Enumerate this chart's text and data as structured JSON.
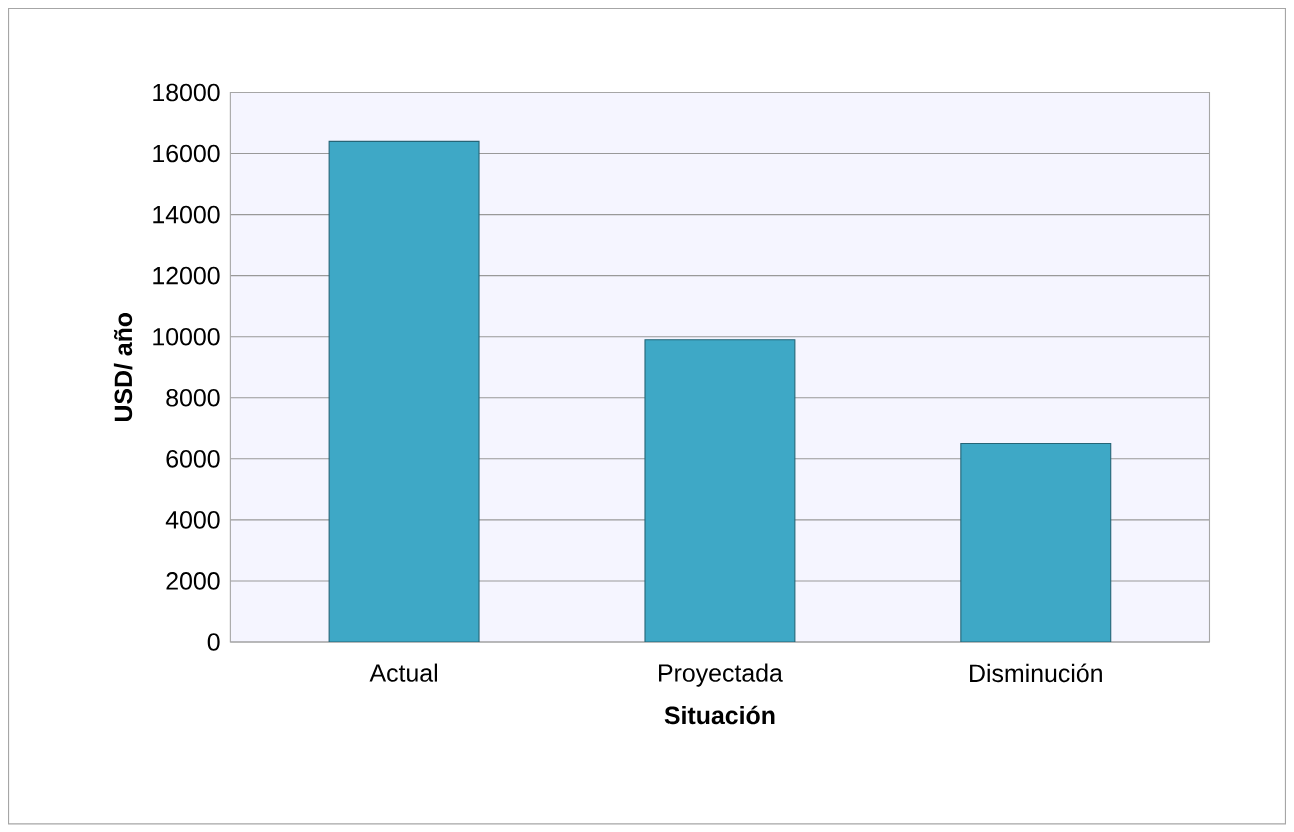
{
  "chart_data": {
    "type": "bar",
    "xlabel": "Situación",
    "ylabel": "USD/ año",
    "categories": [
      "Actual",
      "Proyectada",
      "Disminución"
    ],
    "values": [
      16400,
      9900,
      6500
    ],
    "color": "#3ea8c6",
    "ylim": [
      0,
      18000
    ],
    "yticks": [
      0,
      2000,
      4000,
      6000,
      8000,
      10000,
      12000,
      14000,
      16000,
      18000
    ],
    "grid": "y"
  }
}
